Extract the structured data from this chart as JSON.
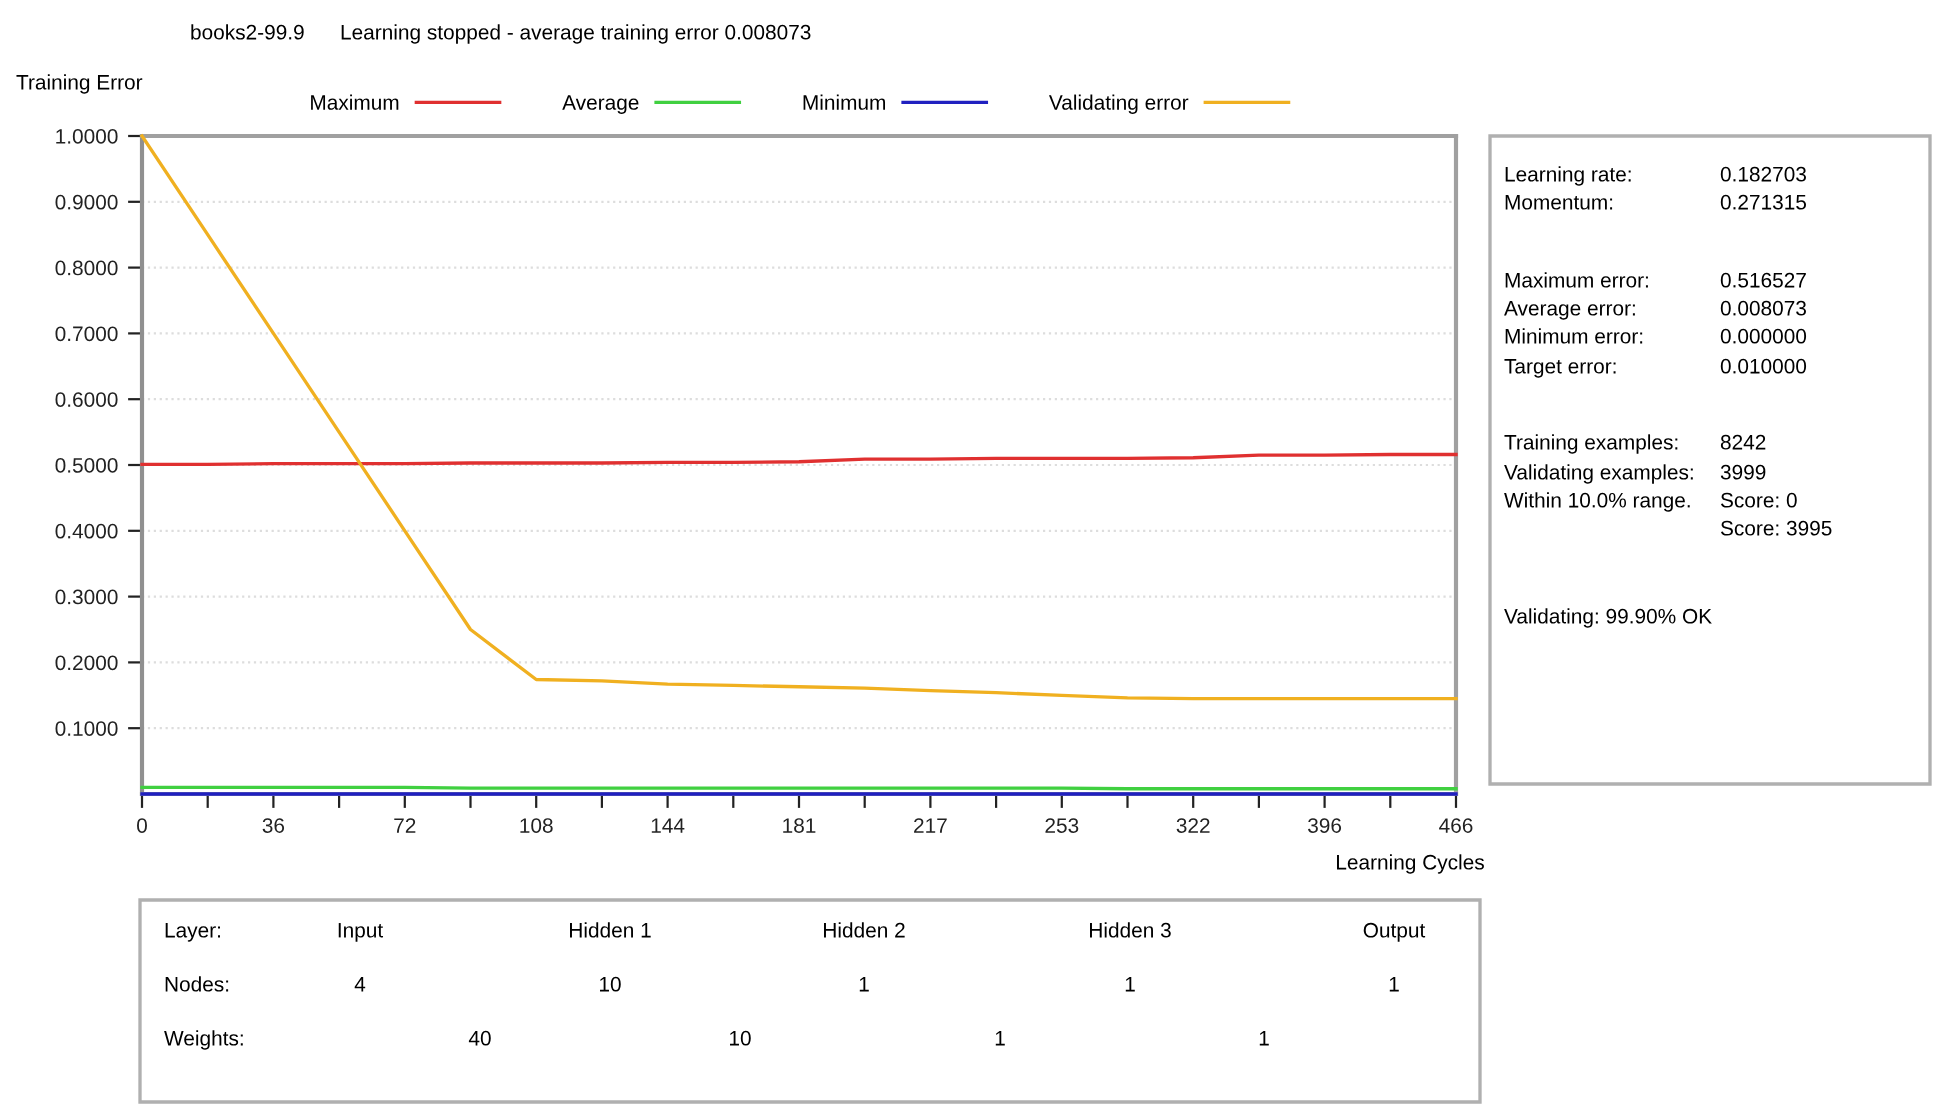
{
  "chart_data": {
    "type": "line",
    "title": "books2-99.9",
    "subtitle": "Learning stopped - average training error 0.008073",
    "xlabel": "Learning Cycles",
    "legend_title": "Training Error",
    "categories": [
      "0",
      null,
      "36",
      null,
      "72",
      null,
      "108",
      null,
      "144",
      null,
      "181",
      null,
      "217",
      null,
      "253",
      null,
      "322",
      null,
      "396",
      null,
      "466"
    ],
    "ylim": [
      0,
      1
    ],
    "yticks": [
      {
        "value": 0.1,
        "label": "0.1000"
      },
      {
        "value": 0.2,
        "label": "0.2000"
      },
      {
        "value": 0.3,
        "label": "0.3000"
      },
      {
        "value": 0.4,
        "label": "0.4000"
      },
      {
        "value": 0.5,
        "label": "0.5000"
      },
      {
        "value": 0.6,
        "label": "0.6000"
      },
      {
        "value": 0.7,
        "label": "0.7000"
      },
      {
        "value": 0.8,
        "label": "0.8000"
      },
      {
        "value": 0.9,
        "label": "0.9000"
      },
      {
        "value": 1.0,
        "label": "1.0000"
      }
    ],
    "grid": "y",
    "legend": "top",
    "marker": "none",
    "line_style": "solid",
    "series": [
      {
        "name": "Maximum",
        "color": "#e03030",
        "values": [
          0.501,
          0.501,
          0.502,
          0.502,
          0.502,
          0.503,
          0.503,
          0.503,
          0.504,
          0.504,
          0.505,
          0.509,
          0.509,
          0.51,
          0.51,
          0.51,
          0.511,
          0.515,
          0.515,
          0.516,
          0.516
        ]
      },
      {
        "name": "Average",
        "color": "#40d040",
        "values": [
          0.01,
          0.01,
          0.01,
          0.01,
          0.01,
          0.009,
          0.009,
          0.009,
          0.009,
          0.009,
          0.009,
          0.009,
          0.009,
          0.009,
          0.009,
          0.008,
          0.008,
          0.008,
          0.008,
          0.008,
          0.008
        ]
      },
      {
        "name": "Minimum",
        "color": "#2020c0",
        "values": [
          0.0,
          0.0,
          0.0,
          0.0,
          0.0,
          0.0,
          0.0,
          0.0,
          0.0,
          0.0,
          0.0,
          0.0,
          0.0,
          0.0,
          0.0,
          0.0,
          0.0,
          0.0,
          0.0,
          0.0,
          0.0
        ]
      },
      {
        "name": "Validating error",
        "color": "#f0b020",
        "values": [
          1.0,
          0.85,
          0.7,
          0.55,
          0.4,
          0.25,
          0.174,
          0.172,
          0.167,
          0.165,
          0.163,
          0.161,
          0.157,
          0.154,
          0.15,
          0.146,
          0.145,
          0.145,
          0.145,
          0.145,
          0.145
        ]
      }
    ],
    "annotations": [
      "Learning rate:",
      "0.182703",
      "Momentum:",
      "0.271315",
      "Maximum error:",
      "0.516527",
      "Average error:",
      "0.008073",
      "Minimum error:",
      "0.000000",
      "Target error:",
      "0.010000",
      "Training examples:",
      "8242",
      "Validating examples:",
      "3999",
      "Within 10.0% range.",
      "Score: 0",
      "Score: 3995",
      "Validating: 99.90% OK",
      "Layer:",
      "Input",
      "Hidden 1",
      "Hidden 2",
      "Hidden 3",
      "Output",
      "Nodes:",
      "4",
      "10",
      "1",
      "1",
      "1",
      "Weights:",
      "40",
      "10",
      "1",
      "1"
    ]
  }
}
